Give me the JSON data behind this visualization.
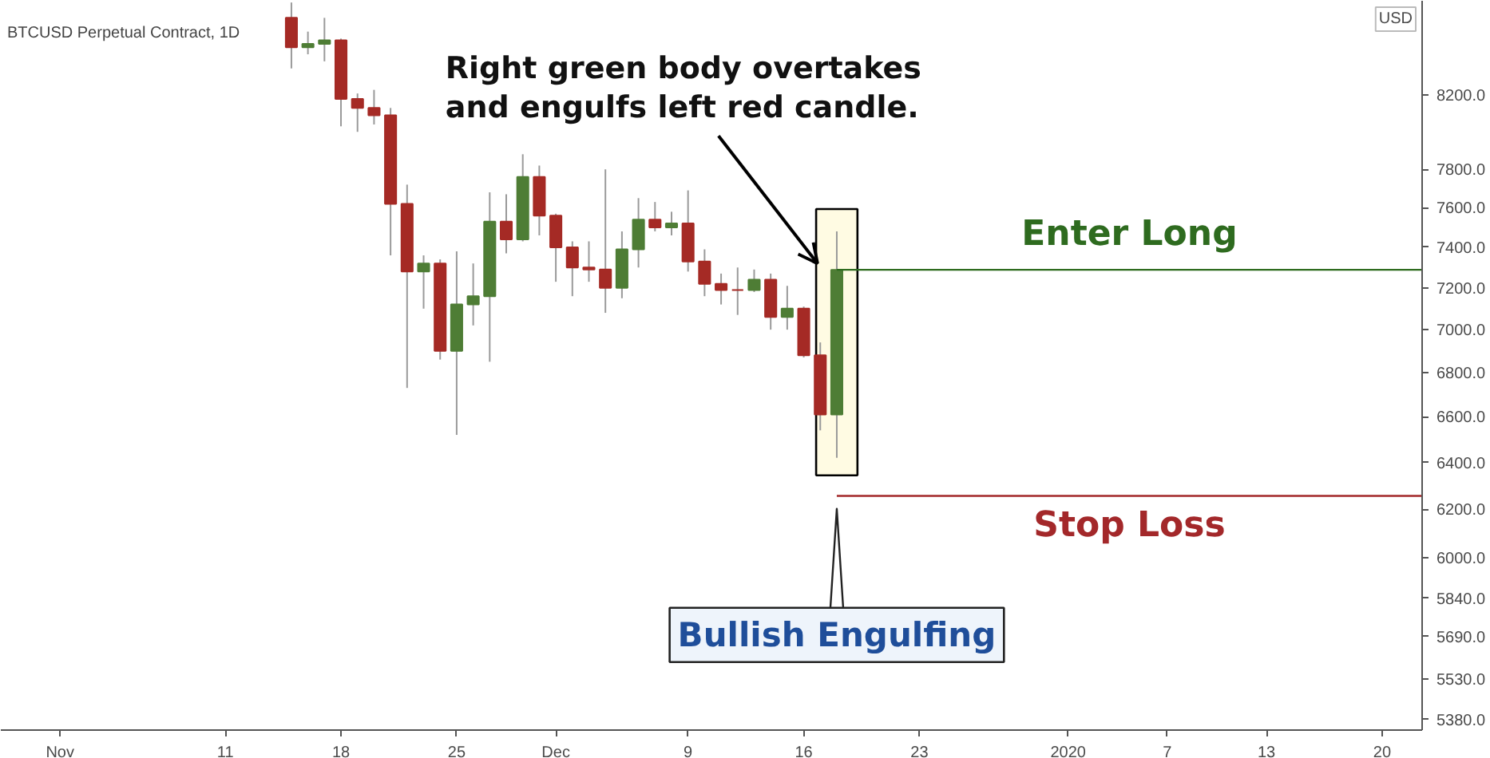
{
  "chart_data": {
    "type": "candlestick",
    "title": "BTCUSD Perpetual Contract, 1D",
    "x": [
      "2019-11-15",
      "2019-11-16",
      "2019-11-17",
      "2019-11-18",
      "2019-11-19",
      "2019-11-20",
      "2019-11-21",
      "2019-11-22",
      "2019-11-23",
      "2019-11-24",
      "2019-11-25",
      "2019-11-26",
      "2019-11-27",
      "2019-11-28",
      "2019-11-29",
      "2019-11-30",
      "2019-12-01",
      "2019-12-02",
      "2019-12-03",
      "2019-12-04",
      "2019-12-05",
      "2019-12-06",
      "2019-12-07",
      "2019-12-08",
      "2019-12-09",
      "2019-12-10",
      "2019-12-11",
      "2019-12-12",
      "2019-12-13",
      "2019-12-14",
      "2019-12-15",
      "2019-12-16",
      "2019-12-17",
      "2019-12-18"
    ],
    "ohlc": [
      [
        8640,
        8730,
        8350,
        8470
      ],
      [
        8470,
        8560,
        8430,
        8490
      ],
      [
        8490,
        8640,
        8390,
        8510
      ],
      [
        8510,
        8520,
        8030,
        8180
      ],
      [
        8180,
        8210,
        8000,
        8130
      ],
      [
        8130,
        8230,
        8040,
        8090
      ],
      [
        8090,
        8130,
        7360,
        7620
      ],
      [
        7620,
        7720,
        6730,
        7280
      ],
      [
        7280,
        7360,
        7100,
        7320
      ],
      [
        7320,
        7340,
        6860,
        6900
      ],
      [
        6900,
        7380,
        6520,
        7120
      ],
      [
        7120,
        7320,
        7020,
        7160
      ],
      [
        7160,
        7680,
        6850,
        7530
      ],
      [
        7530,
        7670,
        7370,
        7440
      ],
      [
        7440,
        7880,
        7430,
        7760
      ],
      [
        7760,
        7820,
        7460,
        7560
      ],
      [
        7560,
        7570,
        7230,
        7400
      ],
      [
        7400,
        7430,
        7160,
        7300
      ],
      [
        7300,
        7430,
        7230,
        7290
      ],
      [
        7290,
        7800,
        7080,
        7200
      ],
      [
        7200,
        7480,
        7150,
        7390
      ],
      [
        7390,
        7650,
        7300,
        7540
      ],
      [
        7540,
        7630,
        7480,
        7500
      ],
      [
        7500,
        7580,
        7460,
        7520
      ],
      [
        7520,
        7690,
        7280,
        7330
      ],
      [
        7330,
        7390,
        7160,
        7220
      ],
      [
        7220,
        7270,
        7120,
        7190
      ],
      [
        7190,
        7300,
        7070,
        7190
      ],
      [
        7190,
        7290,
        7180,
        7240
      ],
      [
        7240,
        7270,
        7000,
        7060
      ],
      [
        7060,
        7210,
        7000,
        7100
      ],
      [
        7100,
        7110,
        6870,
        6880
      ],
      [
        6880,
        6940,
        6540,
        6610
      ],
      [
        6610,
        7480,
        6420,
        7288.5
      ]
    ],
    "colors": [
      "#a52a25",
      "#4e7d35",
      "#4e7d35",
      "#a52a25",
      "#a52a25",
      "#a52a25",
      "#a52a25",
      "#a52a25",
      "#4e7d35",
      "#a52a25",
      "#4e7d35",
      "#4e7d35",
      "#4e7d35",
      "#a52a25",
      "#4e7d35",
      "#a52a25",
      "#a52a25",
      "#a52a25",
      "#a52a25",
      "#a52a25",
      "#4e7d35",
      "#4e7d35",
      "#a52a25",
      "#4e7d35",
      "#a52a25",
      "#a52a25",
      "#a52a25",
      "#a52a25",
      "#4e7d35",
      "#a52a25",
      "#4e7d35",
      "#a52a25",
      "#a52a25",
      "#4e7d35"
    ],
    "xlim": [
      "2019-10-28T10:00",
      "2020-01-22T10:00"
    ],
    "xticks": [
      {
        "value": "2019-11-01",
        "label": "Nov"
      },
      {
        "value": "2019-11-11",
        "label": "11"
      },
      {
        "value": "2019-11-18",
        "label": "18"
      },
      {
        "value": "2019-11-25",
        "label": "25"
      },
      {
        "value": "2019-12-01",
        "label": "Dec"
      },
      {
        "value": "2019-12-09",
        "label": "9"
      },
      {
        "value": "2019-12-16",
        "label": "16"
      },
      {
        "value": "2019-12-23",
        "label": "23"
      },
      {
        "value": "2020-01-01",
        "label": "2020"
      },
      {
        "value": "2020-01-07",
        "label": "7"
      },
      {
        "value": "2020-01-13",
        "label": "13"
      },
      {
        "value": "2020-01-20",
        "label": "20"
      }
    ],
    "ylim": [
      5342,
      8740
    ],
    "log": true,
    "yticks": [
      {
        "value": 5380,
        "label": "5380.0"
      },
      {
        "value": 5530,
        "label": "5530.0"
      },
      {
        "value": 5690,
        "label": "5690.0"
      },
      {
        "value": 5840,
        "label": "5840.0"
      },
      {
        "value": 6000,
        "label": "6000.0"
      },
      {
        "value": 6200,
        "label": "6200.0"
      },
      {
        "value": 6400,
        "label": "6400.0"
      },
      {
        "value": 6600,
        "label": "6600.0"
      },
      {
        "value": 6800,
        "label": "6800.0"
      },
      {
        "value": 7000,
        "label": "7000.0"
      },
      {
        "value": 7200,
        "label": "7200.0"
      },
      {
        "value": 7400,
        "label": "7400.0"
      },
      {
        "value": 7600,
        "label": "7600.0"
      },
      {
        "value": 7800,
        "label": "7800.0"
      },
      {
        "value": 8200,
        "label": "8200.0"
      }
    ],
    "ref_lines": [
      {
        "axis": "y",
        "value": 7288.5,
        "label": "Enter Long",
        "color": "#2e6b1f"
      },
      {
        "axis": "y",
        "value": 6257.0,
        "label": "Stop Loss",
        "color": "#a3282a"
      }
    ],
    "bands": [
      {
        "axis": "x",
        "from": "2019-12-16T18:00",
        "to": "2019-12-19T06:00",
        "color": "#fffbe3"
      }
    ],
    "annotations": [
      {
        "text": "Right green body overtakes\nand engulfs left red candle.",
        "x": "2019-12-16T20:00",
        "y": 7320
      },
      "Bullish Engulfing",
      "USD"
    ],
    "grid": false
  }
}
